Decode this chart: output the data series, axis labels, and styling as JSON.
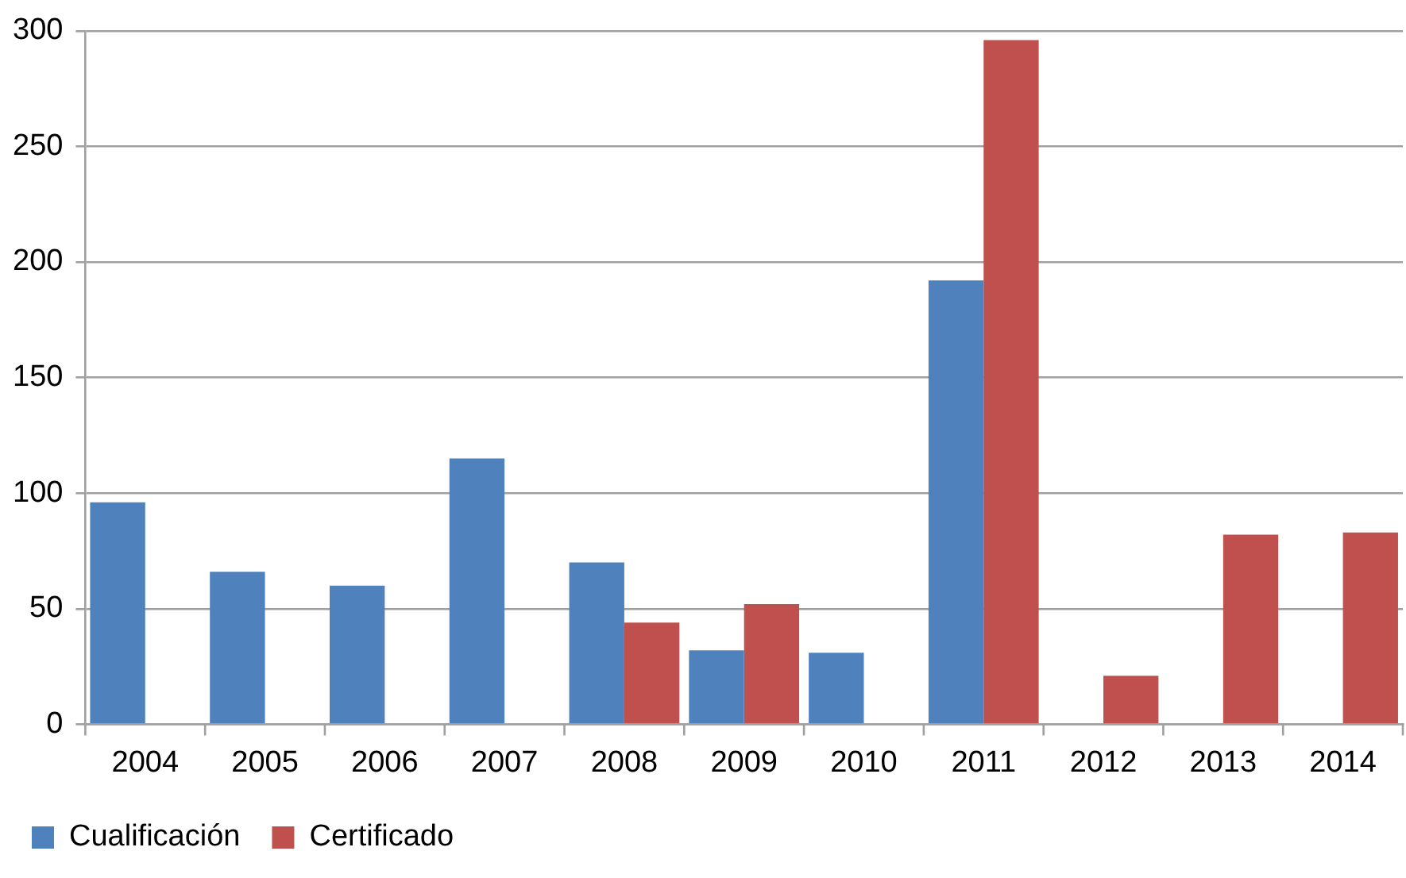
{
  "chart_data": {
    "type": "bar",
    "categories": [
      "2004",
      "2005",
      "2006",
      "2007",
      "2008",
      "2009",
      "2010",
      "2011",
      "2012",
      "2013",
      "2014"
    ],
    "series": [
      {
        "name": "Cualificación",
        "color": "#4f81bd",
        "values": [
          96,
          66,
          60,
          115,
          70,
          32,
          31,
          192,
          null,
          null,
          null
        ]
      },
      {
        "name": "Certificado",
        "color": "#c0504d",
        "values": [
          null,
          null,
          null,
          null,
          44,
          52,
          null,
          296,
          21,
          82,
          83
        ]
      }
    ],
    "ylim": [
      0,
      300
    ],
    "yticks": [
      0,
      50,
      100,
      150,
      200,
      250,
      300
    ],
    "grid": "y",
    "legend": "bottom left"
  }
}
